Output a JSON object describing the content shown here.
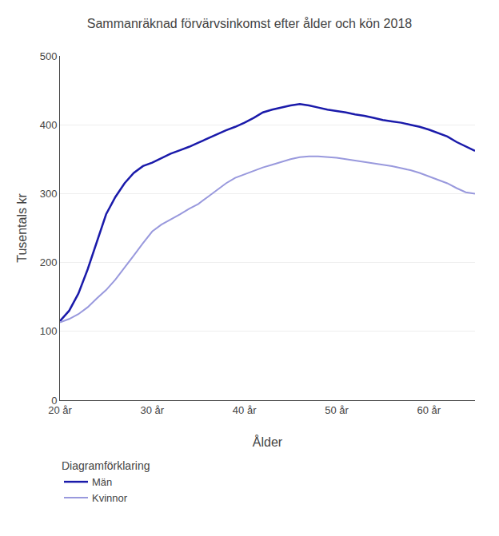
{
  "chart_data": {
    "type": "line",
    "title": "Sammanräknad förvärvsinkomst efter ålder och kön 2018",
    "ylabel": "Tusentals kr",
    "xlabel": "Ålder",
    "legend_title": "Diagramförklaring",
    "legend": "bottom",
    "grid": true,
    "x": [
      20,
      21,
      22,
      23,
      24,
      25,
      26,
      27,
      28,
      29,
      30,
      31,
      32,
      33,
      34,
      35,
      36,
      37,
      38,
      39,
      40,
      41,
      42,
      43,
      44,
      45,
      46,
      47,
      48,
      49,
      50,
      51,
      52,
      53,
      54,
      55,
      56,
      57,
      58,
      59,
      60,
      61,
      62,
      63,
      64,
      65
    ],
    "series": [
      {
        "name": "Män",
        "color": "#1a1aaa",
        "values": [
          115,
          130,
          155,
          190,
          230,
          270,
          295,
          315,
          330,
          340,
          345,
          352,
          358,
          363,
          368,
          374,
          380,
          386,
          392,
          397,
          403,
          410,
          418,
          422,
          425,
          428,
          430,
          428,
          425,
          422,
          420,
          418,
          415,
          413,
          410,
          407,
          405,
          403,
          400,
          397,
          393,
          388,
          383,
          375,
          368,
          362
        ]
      },
      {
        "name": "Kvinnor",
        "color": "#9999dd",
        "values": [
          113,
          118,
          125,
          135,
          148,
          160,
          175,
          192,
          210,
          228,
          245,
          255,
          263,
          270,
          278,
          285,
          295,
          305,
          315,
          323,
          328,
          333,
          338,
          342,
          346,
          350,
          353,
          354,
          354,
          353,
          352,
          350,
          348,
          346,
          344,
          342,
          340,
          337,
          334,
          330,
          325,
          320,
          315,
          308,
          302,
          300
        ]
      }
    ],
    "xlim": [
      20,
      65
    ],
    "xticks": [
      {
        "value": 20,
        "label": "20 år"
      },
      {
        "value": 30,
        "label": "30 år"
      },
      {
        "value": 40,
        "label": "40 år"
      },
      {
        "value": 50,
        "label": "50 år"
      },
      {
        "value": 60,
        "label": "60 år"
      }
    ],
    "ylim": [
      0,
      500
    ],
    "yticks": [
      0,
      100,
      200,
      300,
      400,
      500
    ]
  }
}
